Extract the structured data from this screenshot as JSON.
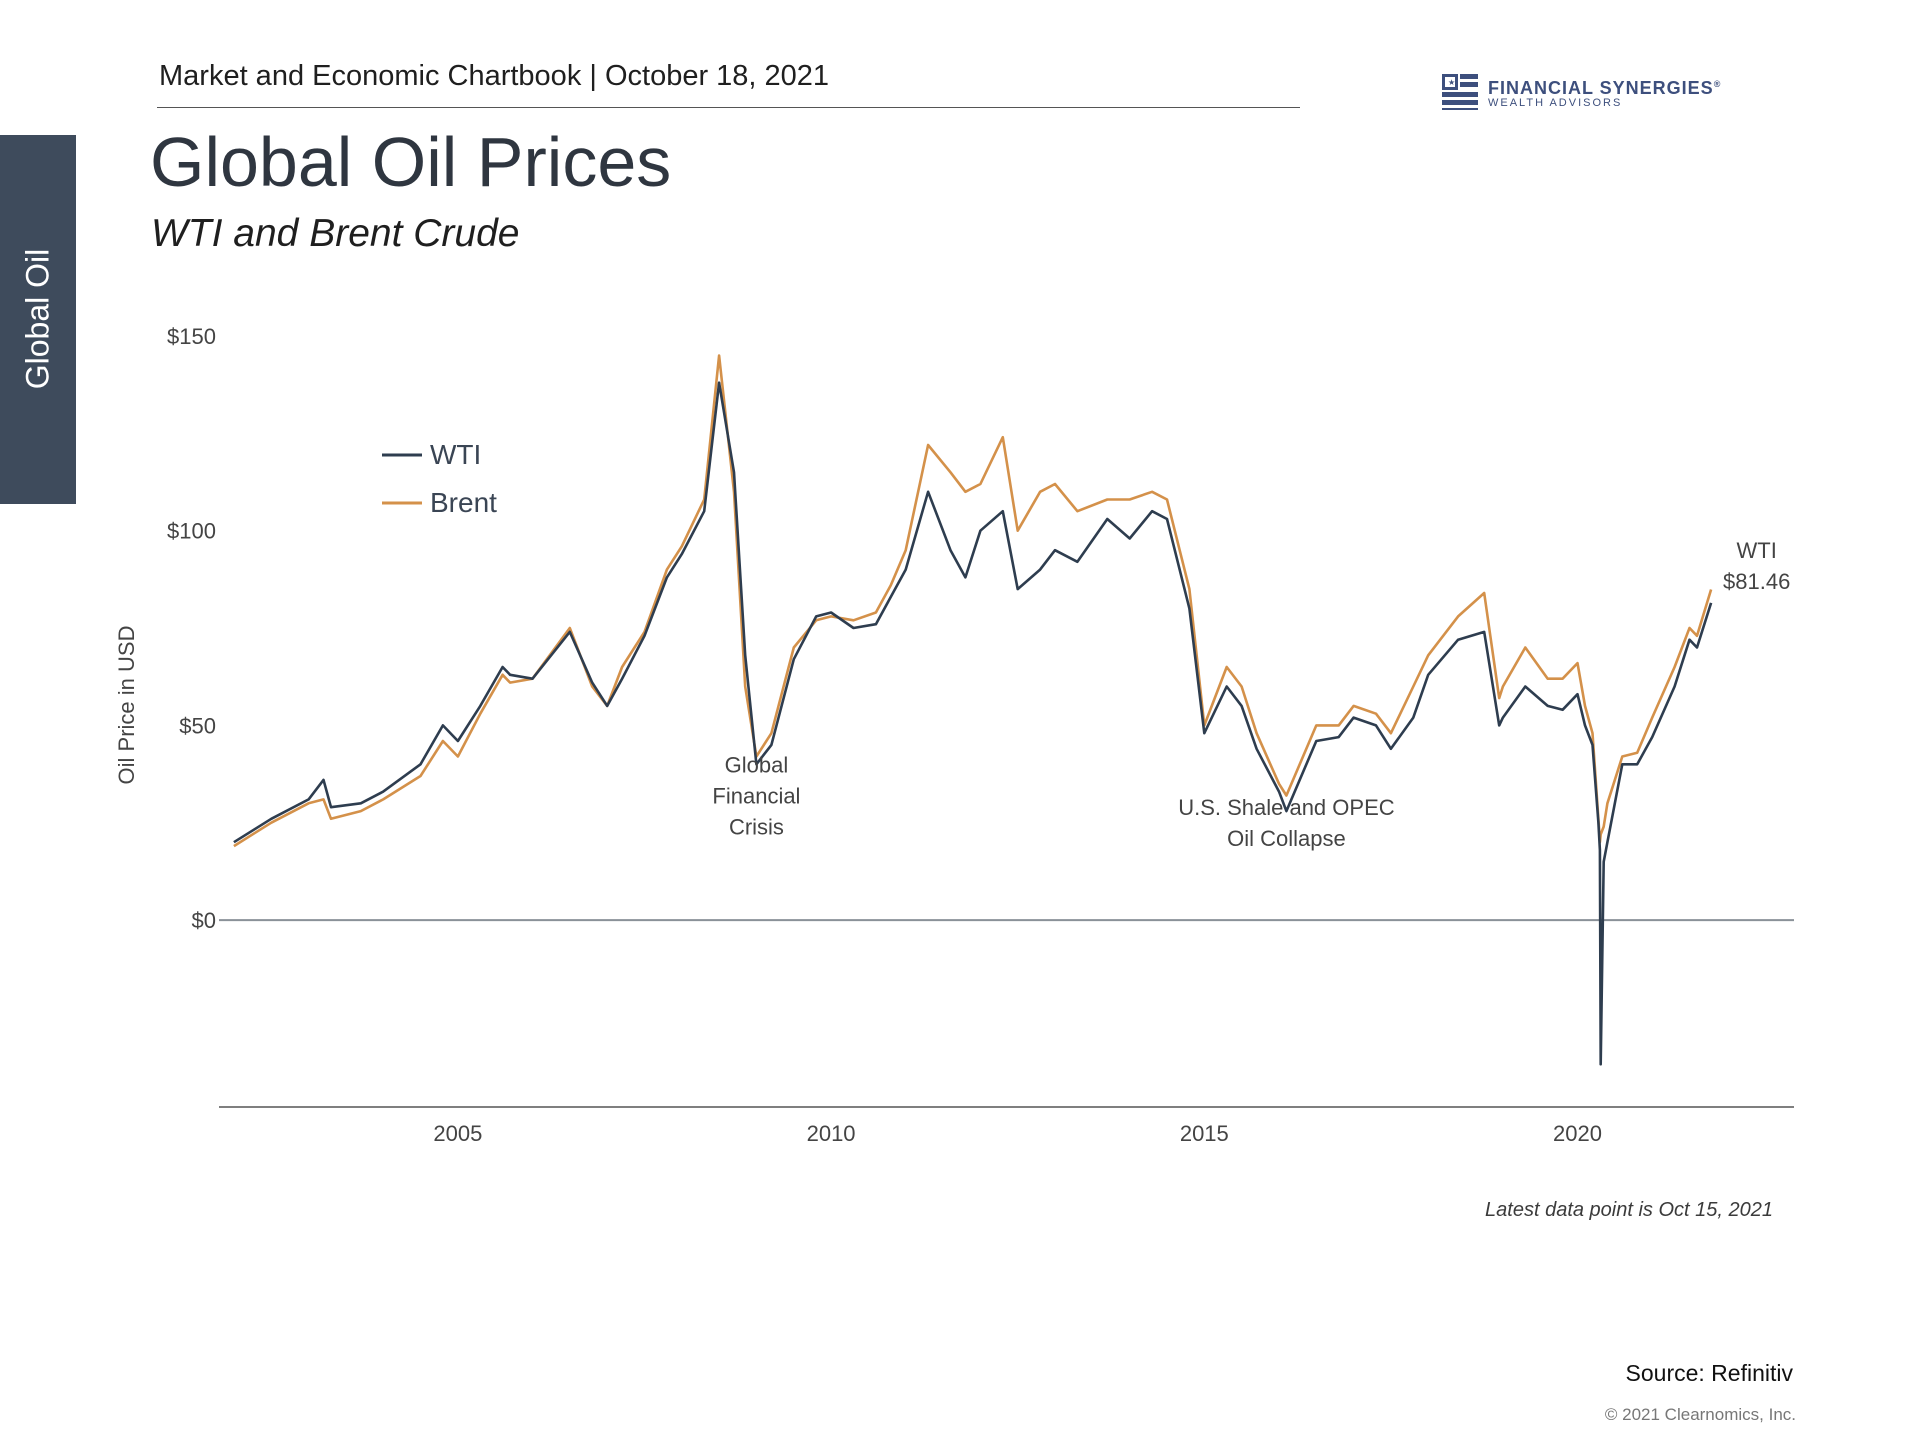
{
  "header": {
    "chartbook_title": "Market and Economic Chartbook | October 18, 2021",
    "logo_name": "FINANCIAL SYNERGIES",
    "logo_registered": "®",
    "logo_tagline": "WEALTH ADVISORS"
  },
  "side_tab": {
    "label": "Global Oil"
  },
  "title": "Global Oil Prices",
  "subtitle": "WTI and Brent Crude",
  "colors": {
    "wti": "#2e3d4f",
    "brent": "#d4914a",
    "tab": "#3e4b5c",
    "logo": "#3d4f7d"
  },
  "footer": {
    "note": "Latest data point is Oct 15, 2021",
    "source": "Source: Refinitiv",
    "copyright": "© 2021 Clearnomics, Inc."
  },
  "chart_data": {
    "type": "line",
    "title": "",
    "xlabel": "",
    "ylabel": "Oil Price in USD",
    "xlim": [
      2001.8,
      2022.9
    ],
    "ylim": [
      -48,
      150
    ],
    "y_ticks": [
      0,
      50,
      100,
      150
    ],
    "y_tick_labels": [
      "$0",
      "$50",
      "$100",
      "$150"
    ],
    "x_ticks": [
      2005,
      2010,
      2015,
      2020
    ],
    "x_tick_labels": [
      "2005",
      "2010",
      "2015",
      "2020"
    ],
    "legend": {
      "position": "top-left",
      "entries": [
        "WTI",
        "Brent"
      ]
    },
    "series": [
      {
        "name": "WTI",
        "x": [
          2002.0,
          2002.5,
          2003.0,
          2003.2,
          2003.3,
          2003.7,
          2004.0,
          2004.5,
          2004.8,
          2005.0,
          2005.3,
          2005.6,
          2005.7,
          2006.0,
          2006.5,
          2006.8,
          2007.0,
          2007.2,
          2007.5,
          2007.8,
          2008.0,
          2008.3,
          2008.5,
          2008.7,
          2008.85,
          2009.0,
          2009.2,
          2009.5,
          2009.8,
          2010.0,
          2010.3,
          2010.6,
          2010.8,
          2011.0,
          2011.3,
          2011.6,
          2011.8,
          2012.0,
          2012.3,
          2012.5,
          2012.8,
          2013.0,
          2013.3,
          2013.7,
          2014.0,
          2014.3,
          2014.5,
          2014.8,
          2015.0,
          2015.3,
          2015.5,
          2015.7,
          2016.0,
          2016.1,
          2016.5,
          2016.8,
          2017.0,
          2017.3,
          2017.5,
          2017.8,
          2018.0,
          2018.4,
          2018.75,
          2018.95,
          2019.0,
          2019.3,
          2019.6,
          2019.8,
          2020.0,
          2020.1,
          2020.2,
          2020.28,
          2020.3,
          2020.31,
          2020.35,
          2020.4,
          2020.6,
          2020.8,
          2021.0,
          2021.3,
          2021.5,
          2021.6,
          2021.79
        ],
        "y": [
          20,
          26,
          31,
          36,
          29,
          30,
          33,
          40,
          50,
          46,
          55,
          65,
          63,
          62,
          74,
          61,
          55,
          62,
          73,
          88,
          94,
          105,
          138,
          115,
          68,
          40,
          45,
          67,
          78,
          79,
          75,
          76,
          83,
          90,
          110,
          95,
          88,
          100,
          105,
          85,
          90,
          95,
          92,
          103,
          98,
          105,
          103,
          80,
          48,
          60,
          55,
          44,
          33,
          28,
          46,
          47,
          52,
          50,
          44,
          52,
          63,
          72,
          74,
          50,
          52,
          60,
          55,
          54,
          58,
          50,
          45,
          25,
          18,
          -37,
          15,
          20,
          40,
          40,
          47,
          60,
          72,
          70,
          81.46
        ]
      },
      {
        "name": "Brent",
        "x": [
          2002.0,
          2002.5,
          2003.0,
          2003.2,
          2003.3,
          2003.7,
          2004.0,
          2004.5,
          2004.8,
          2005.0,
          2005.3,
          2005.6,
          2005.7,
          2006.0,
          2006.5,
          2006.8,
          2007.0,
          2007.2,
          2007.5,
          2007.8,
          2008.0,
          2008.3,
          2008.5,
          2008.7,
          2008.85,
          2009.0,
          2009.2,
          2009.5,
          2009.8,
          2010.0,
          2010.3,
          2010.6,
          2010.8,
          2011.0,
          2011.3,
          2011.6,
          2011.8,
          2012.0,
          2012.3,
          2012.5,
          2012.8,
          2013.0,
          2013.3,
          2013.7,
          2014.0,
          2014.3,
          2014.5,
          2014.8,
          2015.0,
          2015.3,
          2015.5,
          2015.7,
          2016.0,
          2016.1,
          2016.5,
          2016.8,
          2017.0,
          2017.3,
          2017.5,
          2017.8,
          2018.0,
          2018.4,
          2018.75,
          2018.95,
          2019.0,
          2019.3,
          2019.6,
          2019.8,
          2020.0,
          2020.1,
          2020.2,
          2020.28,
          2020.3,
          2020.31,
          2020.35,
          2020.4,
          2020.6,
          2020.8,
          2021.0,
          2021.3,
          2021.5,
          2021.6,
          2021.79
        ],
        "y": [
          19,
          25,
          30,
          31,
          26,
          28,
          31,
          37,
          46,
          42,
          53,
          63,
          61,
          62,
          75,
          60,
          55,
          65,
          74,
          90,
          96,
          108,
          145,
          110,
          60,
          42,
          48,
          70,
          77,
          78,
          77,
          79,
          86,
          95,
          122,
          115,
          110,
          112,
          124,
          100,
          110,
          112,
          105,
          108,
          108,
          110,
          108,
          85,
          50,
          65,
          60,
          48,
          35,
          32,
          50,
          50,
          55,
          53,
          48,
          60,
          68,
          78,
          84,
          57,
          60,
          70,
          62,
          62,
          66,
          55,
          48,
          26,
          20,
          22,
          24,
          30,
          42,
          43,
          52,
          65,
          75,
          73,
          84.9
        ]
      }
    ],
    "annotations": [
      {
        "lines": [
          "Global",
          "Financial",
          "Crisis"
        ],
        "x": 2009.0,
        "y": 22
      },
      {
        "lines": [
          "U.S. Shale and OPEC",
          "Oil Collapse"
        ],
        "x": 2016.1,
        "y": 19
      },
      {
        "lines": [
          "WTI",
          "$81.46"
        ],
        "x": 2022.4,
        "y": 85
      }
    ]
  }
}
